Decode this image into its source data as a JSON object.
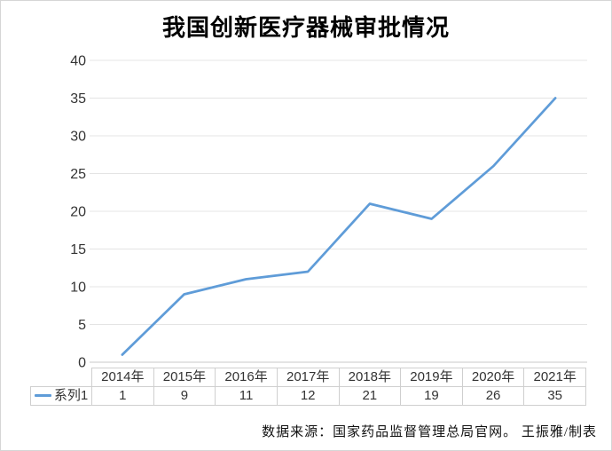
{
  "title": "我国创新医疗器械审批情况",
  "footer": "数据来源：国家药品监督管理总局官网。 王振雅/制表",
  "colors": {
    "line": "#5f9cd8",
    "grid": "#e4e4e4",
    "grid_zero": "#c9c9c9",
    "table_border": "#cfcfcf",
    "tick_text": "#343434"
  },
  "chart_data": {
    "type": "line",
    "title": "我国创新医疗器械审批情况",
    "categories": [
      "2014年",
      "2015年",
      "2016年",
      "2017年",
      "2018年",
      "2019年",
      "2020年",
      "2021年"
    ],
    "series": [
      {
        "name": "系列1",
        "values": [
          1,
          9,
          11,
          12,
          21,
          19,
          26,
          35
        ]
      }
    ],
    "xlabel": "",
    "ylabel": "",
    "ylim": [
      0,
      40
    ],
    "yticks": [
      0,
      5,
      10,
      15,
      20,
      25,
      30,
      35,
      40
    ],
    "grid": true,
    "markers": false,
    "legend_position": "table-row-left"
  }
}
